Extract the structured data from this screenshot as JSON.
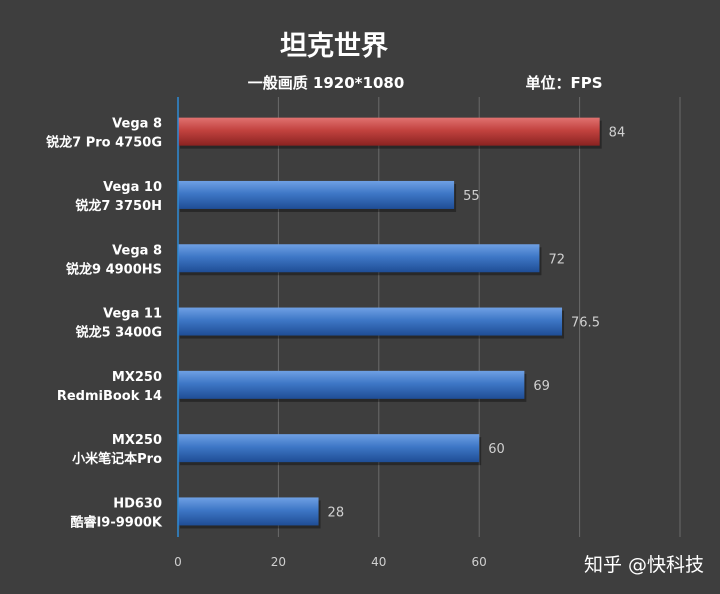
{
  "chart_data": {
    "type": "bar",
    "orientation": "horizontal",
    "title": "坦克世界",
    "subtitle_left": "一般画质 1920*1080",
    "subtitle_right": "单位：FPS",
    "categories": [
      [
        "Vega 8",
        "锐龙7 Pro 4750G"
      ],
      [
        "Vega 10",
        "锐龙7 3750H"
      ],
      [
        "Vega 8",
        "锐龙9 4900HS"
      ],
      [
        "Vega 11",
        "锐龙5 3400G"
      ],
      [
        "MX250",
        "RedmiBook 14"
      ],
      [
        "MX250",
        "小米笔记本Pro"
      ],
      [
        "HD630",
        "酷睿I9-9900K"
      ]
    ],
    "values": [
      84,
      55,
      72,
      76.5,
      69,
      60,
      28
    ],
    "value_labels": [
      "84",
      "55",
      "72",
      "76.5",
      "69",
      "60",
      "28"
    ],
    "highlight_index": 0,
    "colors": {
      "highlight": "#c0403e",
      "normal": "#3b74c4"
    },
    "xticks": [
      "0",
      "20",
      "40",
      "60"
    ],
    "xlim": [
      0,
      100
    ],
    "grid": true,
    "watermark": "知乎 @快科技"
  }
}
